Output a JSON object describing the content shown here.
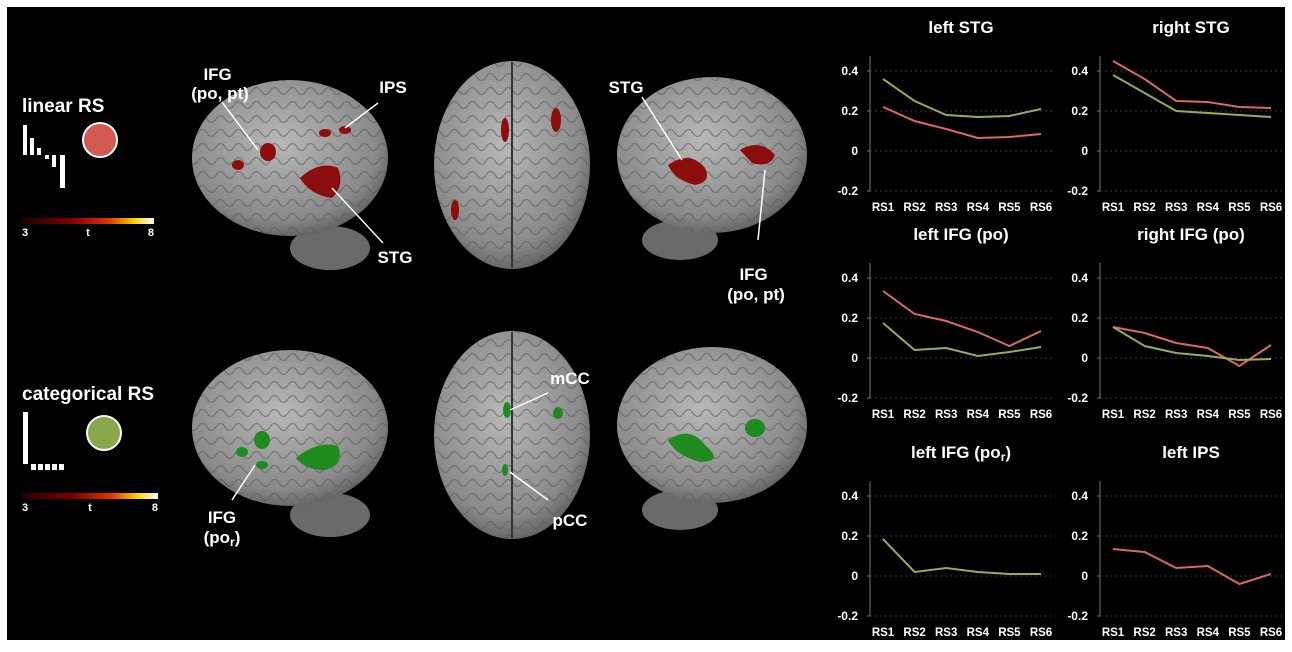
{
  "legends": [
    {
      "label": "linear RS",
      "cbar": {
        "min": 3,
        "label": "t",
        "max": 8
      }
    },
    {
      "label": "categorical RS",
      "cbar": {
        "min": 3,
        "label": "t",
        "max": 8
      }
    }
  ],
  "annotations": {
    "ifg_left": [
      "IFG",
      "(po, pt)"
    ],
    "ips": "IPS",
    "stg_left": "STG",
    "stg_right": "STG",
    "ifg_right": [
      "IFG",
      "(po, pt)"
    ],
    "mcc": "mCC",
    "pcc": "pCC",
    "ifg_por": {
      "line1": "IFG",
      "text": "(po",
      "sub": "r",
      "end": ")"
    }
  },
  "chart_data": [
    {
      "type": "line",
      "title": "left STG",
      "categories": [
        "RS1",
        "RS2",
        "RS3",
        "RS4",
        "RS5",
        "RS6"
      ],
      "ylim": [
        -0.2,
        0.5
      ],
      "yticks": [
        -0.2,
        0,
        0.2,
        0.4
      ],
      "grid": true,
      "series": [
        {
          "color": "#97ad55",
          "values": [
            0.36,
            0.25,
            0.18,
            0.17,
            0.175,
            0.21
          ]
        },
        {
          "color": "#e06565",
          "values": [
            0.22,
            0.15,
            0.11,
            0.065,
            0.07,
            0.085
          ]
        }
      ]
    },
    {
      "type": "line",
      "title": "right STG",
      "categories": [
        "RS1",
        "RS2",
        "RS3",
        "RS4",
        "RS5",
        "RS6"
      ],
      "ylim": [
        -0.2,
        0.5
      ],
      "yticks": [
        -0.2,
        0,
        0.2,
        0.4
      ],
      "grid": true,
      "series": [
        {
          "color": "#e06565",
          "values": [
            0.45,
            0.36,
            0.25,
            0.245,
            0.22,
            0.215
          ]
        },
        {
          "color": "#97ad55",
          "values": [
            0.38,
            0.29,
            0.2,
            0.19,
            0.18,
            0.17
          ]
        }
      ]
    },
    {
      "type": "line",
      "title": "left IFG (po)",
      "categories": [
        "RS1",
        "RS2",
        "RS3",
        "RS4",
        "RS5",
        "RS6"
      ],
      "ylim": [
        -0.2,
        0.5
      ],
      "yticks": [
        -0.2,
        0,
        0.2,
        0.4
      ],
      "grid": true,
      "series": [
        {
          "color": "#e06565",
          "values": [
            0.335,
            0.22,
            0.185,
            0.13,
            0.06,
            0.135
          ]
        },
        {
          "color": "#97ad55",
          "values": [
            0.175,
            0.04,
            0.05,
            0.01,
            0.03,
            0.055
          ]
        }
      ]
    },
    {
      "type": "line",
      "title": "right IFG (po)",
      "categories": [
        "RS1",
        "RS2",
        "RS3",
        "RS4",
        "RS5",
        "RS6"
      ],
      "ylim": [
        -0.2,
        0.5
      ],
      "yticks": [
        -0.2,
        0,
        0.2,
        0.4
      ],
      "grid": true,
      "series": [
        {
          "color": "#e06565",
          "values": [
            0.155,
            0.125,
            0.075,
            0.05,
            -0.04,
            0.065
          ]
        },
        {
          "color": "#97ad55",
          "values": [
            0.155,
            0.06,
            0.025,
            0.01,
            -0.01,
            -0.005
          ]
        }
      ]
    },
    {
      "type": "line",
      "title": "left IFG (po",
      "title_sub": "r",
      "title_end": ")",
      "categories": [
        "RS1",
        "RS2",
        "RS3",
        "RS4",
        "RS5",
        "RS6"
      ],
      "ylim": [
        -0.2,
        0.5
      ],
      "yticks": [
        -0.2,
        0,
        0.2,
        0.4
      ],
      "grid": true,
      "series": [
        {
          "color": "#97ad55",
          "values": [
            0.185,
            0.02,
            0.04,
            0.02,
            0.01,
            0.01
          ]
        }
      ]
    },
    {
      "type": "line",
      "title": "left IPS",
      "categories": [
        "RS1",
        "RS2",
        "RS3",
        "RS4",
        "RS5",
        "RS6"
      ],
      "ylim": [
        -0.2,
        0.5
      ],
      "yticks": [
        -0.2,
        0,
        0.2,
        0.4
      ],
      "grid": true,
      "series": [
        {
          "color": "#e06565",
          "values": [
            0.135,
            0.12,
            0.04,
            0.05,
            -0.04,
            0.01
          ]
        }
      ]
    }
  ]
}
